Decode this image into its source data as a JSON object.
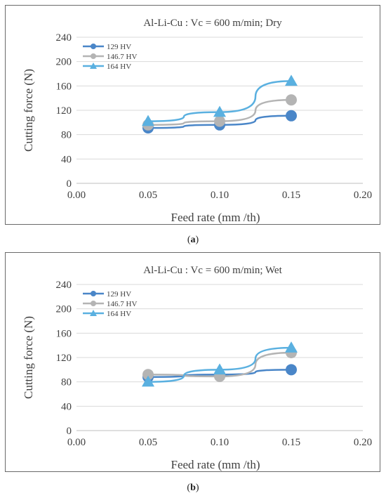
{
  "colors": {
    "s129": "#4a86c8",
    "s146": "#b4b4b4",
    "s164": "#5ab0e0",
    "grid": "#d9d9d9",
    "axis": "#bfbfbf",
    "text": "#404040"
  },
  "chart_data": [
    {
      "type": "line",
      "title": "Al-Li-Cu : Vc = 600 m/min;  Dry",
      "xlabel": "Feed rate (mm /th)",
      "ylabel": "Cutting force (N)",
      "xlim": [
        0.0,
        0.2
      ],
      "ylim": [
        0,
        240
      ],
      "xticks": [
        "0.00",
        "0.05",
        "0.10",
        "0.15",
        "0.20"
      ],
      "yticks": [
        "0",
        "40",
        "80",
        "120",
        "160",
        "200",
        "240"
      ],
      "grid": "horizontal",
      "legend": "top-left",
      "x": [
        0.05,
        0.1,
        0.15
      ],
      "series": [
        {
          "name": "129 HV",
          "values": [
            91,
            96,
            111
          ],
          "marker": "circle",
          "color": "#4a86c8"
        },
        {
          "name": "146.7 HV",
          "values": [
            96,
            102,
            137
          ],
          "marker": "circle",
          "color": "#b4b4b4"
        },
        {
          "name": "164 HV",
          "values": [
            102,
            117,
            168
          ],
          "marker": "triangle",
          "color": "#5ab0e0"
        }
      ],
      "caption": "a"
    },
    {
      "type": "line",
      "title": "Al-Li-Cu : Vc = 600 m/min;  Wet",
      "xlabel": "Feed rate (mm /th)",
      "ylabel": "Cutting force (N)",
      "xlim": [
        0.0,
        0.2
      ],
      "ylim": [
        0,
        240
      ],
      "xticks": [
        "0.00",
        "0.05",
        "0.10",
        "0.15",
        "0.20"
      ],
      "yticks": [
        "0",
        "40",
        "80",
        "120",
        "160",
        "200",
        "240"
      ],
      "grid": "horizontal",
      "legend": "top-left",
      "x": [
        0.05,
        0.1,
        0.15
      ],
      "series": [
        {
          "name": "129 HV",
          "values": [
            88,
            92,
            100
          ],
          "marker": "circle",
          "color": "#4a86c8"
        },
        {
          "name": "146.7 HV",
          "values": [
            92,
            89,
            128
          ],
          "marker": "circle",
          "color": "#b4b4b4"
        },
        {
          "name": "164 HV",
          "values": [
            80,
            100,
            136
          ],
          "marker": "triangle",
          "color": "#5ab0e0"
        }
      ],
      "caption": "b"
    }
  ]
}
